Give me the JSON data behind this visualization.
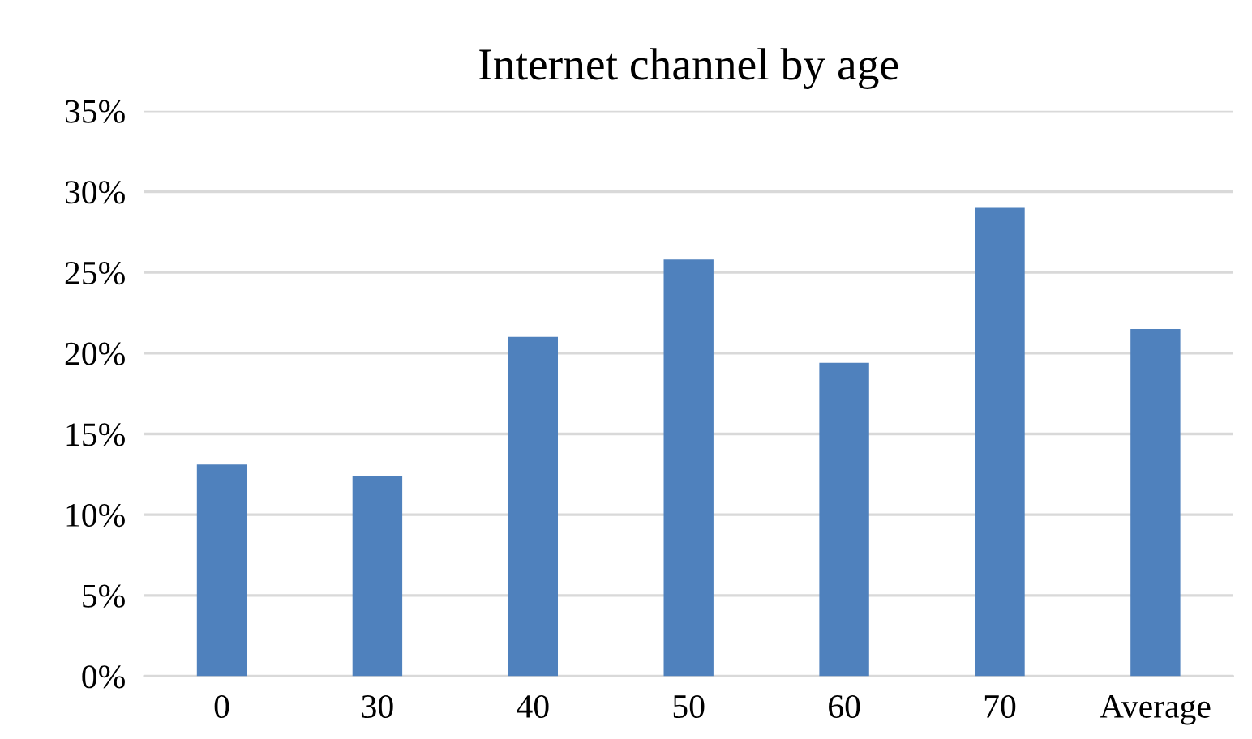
{
  "chart_data": {
    "type": "bar",
    "title": "Internet channel by age",
    "categories": [
      "0",
      "30",
      "40",
      "50",
      "60",
      "70",
      "Average"
    ],
    "values": [
      13.1,
      12.4,
      21.0,
      25.8,
      19.4,
      29.0,
      21.5
    ],
    "color": "#4f81bd",
    "ylim": [
      0,
      35
    ],
    "yticks": [
      {
        "value": 0,
        "label": "0%"
      },
      {
        "value": 5,
        "label": "5%"
      },
      {
        "value": 10,
        "label": "10%"
      },
      {
        "value": 15,
        "label": "15%"
      },
      {
        "value": 20,
        "label": "20%"
      },
      {
        "value": 25,
        "label": "25%"
      },
      {
        "value": 30,
        "label": "30%"
      },
      {
        "value": 35,
        "label": "35%"
      }
    ],
    "grid": "y"
  }
}
